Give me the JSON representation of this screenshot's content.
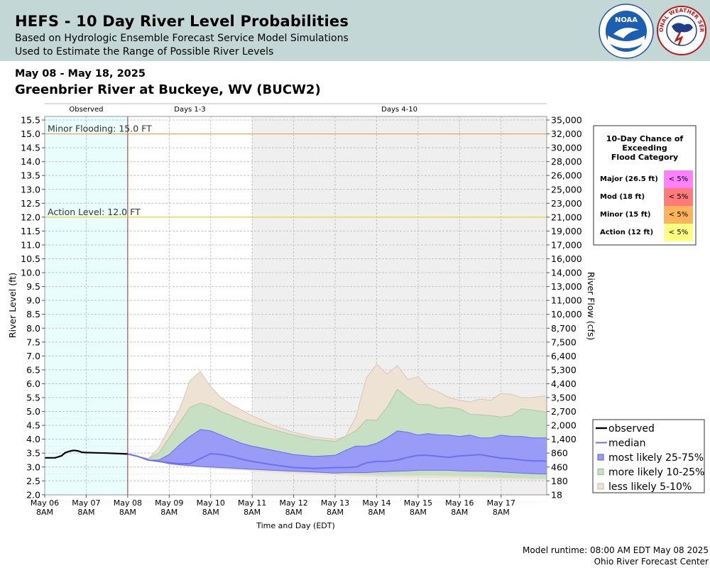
{
  "header": {
    "title": "HEFS - 10 Day River Level Probabilities",
    "subtitle_line1": "Based on Hydrologic Ensemble Forecast Service Model Simulations",
    "subtitle_line2": "Used to Estimate the Range of Possible River Levels",
    "noaa_logo": "NOAA",
    "nws_logo": "NATIONAL WEATHER SERVICE"
  },
  "date_range": "May 08 - May 18, 2025",
  "station_title": "Greenbrier River at Buckeye, WV (BUCW2)",
  "footer": {
    "runtime": "Model runtime: 08:00 AM EDT May 08 2025",
    "center": "Ohio River Forecast Center"
  },
  "colors": {
    "observed_bg": "#eafdfd",
    "days4_10_bg": "#efefef",
    "observed_line": "#000000",
    "median": "#6f6ff2",
    "band_25_75": "#9a9af7",
    "band_10_25": "#c7dfc2",
    "band_5_10": "#eee2d4",
    "minor_line": "#f0a040",
    "action_line": "#f5d22e",
    "forecast_start_line": "#c02828",
    "major": "#ff80ff",
    "mod": "#ff7b7b",
    "minor": "#ffb45a",
    "action": "#ffff80"
  },
  "chart_data": {
    "type": "area",
    "xlabel": "Time and Day (EDT)",
    "ylabel": "River Level (ft)",
    "y2label": "River Flow (cfs)",
    "ylim": [
      2.0,
      15.5
    ],
    "xlim": [
      0,
      12.1
    ],
    "x_unit": "days since May 06 8AM",
    "grid": true,
    "x_ticks": [
      {
        "x": 0,
        "line1": "May 06",
        "line2": "8AM"
      },
      {
        "x": 1,
        "line1": "May 07",
        "line2": "8AM"
      },
      {
        "x": 2,
        "line1": "May 08",
        "line2": "8AM"
      },
      {
        "x": 3,
        "line1": "May 09",
        "line2": "8AM"
      },
      {
        "x": 4,
        "line1": "May 10",
        "line2": "8AM"
      },
      {
        "x": 5,
        "line1": "May 11",
        "line2": "8AM"
      },
      {
        "x": 6,
        "line1": "May 12",
        "line2": "8AM"
      },
      {
        "x": 7,
        "line1": "May 13",
        "line2": "8AM"
      },
      {
        "x": 8,
        "line1": "May 14",
        "line2": "8AM"
      },
      {
        "x": 9,
        "line1": "May 15",
        "line2": "8AM"
      },
      {
        "x": 10,
        "line1": "May 16",
        "line2": "8AM"
      },
      {
        "x": 11,
        "line1": "May 17",
        "line2": "8AM"
      }
    ],
    "y_ticks": [
      "2.0",
      "2.5",
      "3.0",
      "3.5",
      "4.0",
      "4.5",
      "5.0",
      "5.5",
      "6.0",
      "6.5",
      "7.0",
      "7.5",
      "8.0",
      "8.5",
      "9.0",
      "9.5",
      "10.0",
      "10.5",
      "11.0",
      "11.5",
      "12.0",
      "12.5",
      "13.0",
      "13.5",
      "14.0",
      "14.5",
      "15.0",
      "15.5"
    ],
    "flow_ticks": [
      "18",
      "180",
      "460",
      "860",
      "1,400",
      "2,000",
      "2,700",
      "3,500",
      "4,400",
      "5,300",
      "6,400",
      "7,500",
      "8,700",
      "10,000",
      "11,000",
      "13,000",
      "14,000",
      "16,000",
      "17,000",
      "19,000",
      "21,000",
      "23,000",
      "25,000",
      "26,000",
      "28,000",
      "30,000",
      "32,000",
      "35,000"
    ],
    "periods": [
      {
        "label": "Observed",
        "x_start": 0,
        "x_end": 2
      },
      {
        "label": "Days 1-3",
        "x_start": 2,
        "x_end": 5
      },
      {
        "label": "Days 4-10",
        "x_start": 5,
        "x_end": 12.1
      }
    ],
    "thresholds": [
      {
        "label": "Minor Flooding: 15.0 FT",
        "value": 15.0
      },
      {
        "label": "Action Level: 12.0 FT",
        "value": 12.0
      }
    ],
    "observed": {
      "x": [
        0,
        0.25,
        0.4,
        0.5,
        0.6,
        0.7,
        0.8,
        0.9,
        1.0,
        1.5,
        2.0
      ],
      "y": [
        3.33,
        3.33,
        3.4,
        3.52,
        3.57,
        3.6,
        3.58,
        3.53,
        3.52,
        3.5,
        3.47
      ]
    },
    "forecast_x": [
      2.0,
      2.25,
      2.5,
      2.75,
      3.0,
      3.25,
      3.5,
      3.75,
      4.0,
      4.25,
      4.5,
      4.75,
      5.0,
      5.5,
      6.0,
      6.5,
      7.0,
      7.25,
      7.5,
      7.75,
      8.0,
      8.25,
      8.5,
      8.75,
      9.0,
      9.25,
      9.5,
      9.75,
      10.0,
      10.25,
      10.5,
      10.75,
      11.0,
      11.25,
      11.5,
      11.75,
      12.0,
      12.1
    ],
    "median": [
      3.47,
      3.38,
      3.25,
      3.2,
      3.15,
      3.12,
      3.12,
      3.3,
      3.48,
      3.45,
      3.38,
      3.28,
      3.2,
      3.08,
      2.98,
      2.95,
      2.98,
      2.98,
      3.0,
      3.15,
      3.2,
      3.2,
      3.25,
      3.35,
      3.42,
      3.42,
      3.38,
      3.35,
      3.4,
      3.42,
      3.45,
      3.38,
      3.32,
      3.3,
      3.25,
      3.22,
      3.22,
      3.2
    ],
    "p25": [
      3.47,
      3.38,
      3.25,
      3.2,
      3.12,
      3.08,
      3.05,
      3.02,
      3.0,
      2.98,
      2.96,
      2.94,
      2.92,
      2.88,
      2.85,
      2.82,
      2.78,
      2.8,
      2.8,
      2.8,
      2.82,
      2.84,
      2.85,
      2.86,
      2.88,
      2.88,
      2.88,
      2.88,
      2.86,
      2.85,
      2.85,
      2.84,
      2.82,
      2.8,
      2.78,
      2.76,
      2.75,
      2.75
    ],
    "p75": [
      3.47,
      3.38,
      3.25,
      3.25,
      3.45,
      3.8,
      4.1,
      4.35,
      4.3,
      4.15,
      4.0,
      3.85,
      3.75,
      3.6,
      3.45,
      3.38,
      3.42,
      3.6,
      3.75,
      3.75,
      3.85,
      4.05,
      4.3,
      4.25,
      4.15,
      4.2,
      4.15,
      4.15,
      4.1,
      4.15,
      4.05,
      4.05,
      4.15,
      4.1,
      4.1,
      4.05,
      4.05,
      4.05
    ],
    "p10": [
      3.47,
      3.38,
      3.25,
      3.2,
      3.12,
      3.08,
      3.03,
      3.0,
      2.98,
      2.96,
      2.94,
      2.92,
      2.9,
      2.86,
      2.82,
      2.78,
      2.75,
      2.74,
      2.73,
      2.72,
      2.7,
      2.7,
      2.7,
      2.7,
      2.7,
      2.7,
      2.69,
      2.68,
      2.67,
      2.66,
      2.65,
      2.63,
      2.62,
      2.6,
      2.6,
      2.58,
      2.58,
      2.58
    ],
    "p90": [
      3.47,
      3.38,
      3.3,
      3.5,
      4.05,
      4.6,
      5.15,
      5.3,
      5.2,
      5.0,
      4.85,
      4.7,
      4.55,
      4.35,
      4.15,
      4.0,
      3.92,
      4.1,
      4.3,
      4.7,
      4.68,
      5.15,
      5.8,
      5.5,
      5.25,
      5.25,
      5.12,
      5.15,
      5.1,
      4.9,
      4.88,
      4.85,
      4.8,
      4.85,
      5.1,
      5.05,
      5.0,
      4.97
    ],
    "p05": [
      3.47,
      3.38,
      3.25,
      3.2,
      3.1,
      3.05,
      3.0,
      2.98,
      2.95,
      2.92,
      2.9,
      2.88,
      2.85,
      2.8,
      2.75,
      2.72,
      2.7,
      2.68,
      2.66,
      2.65,
      2.64,
      2.63,
      2.62,
      2.62,
      2.62,
      2.61,
      2.6,
      2.6,
      2.6,
      2.58,
      2.58,
      2.56,
      2.55,
      2.54,
      2.53,
      2.52,
      2.52,
      2.52
    ],
    "p95": [
      3.47,
      3.38,
      3.3,
      3.7,
      4.4,
      5.1,
      6.1,
      6.45,
      5.9,
      5.5,
      5.25,
      5.05,
      4.85,
      4.5,
      4.25,
      4.08,
      4.0,
      4.1,
      4.8,
      6.2,
      6.7,
      6.35,
      6.65,
      6.15,
      6.25,
      5.85,
      5.7,
      5.5,
      5.4,
      5.35,
      5.45,
      5.4,
      5.65,
      5.62,
      5.5,
      5.5,
      5.55,
      5.55
    ],
    "legend": [
      {
        "label": "observed",
        "kind": "line",
        "color": "#000000"
      },
      {
        "label": "median",
        "kind": "line",
        "color": "#6f6ff2"
      },
      {
        "label": "most likely 25-75%",
        "kind": "box",
        "color": "#9a9af7",
        "edge": "#5a5ae8"
      },
      {
        "label": "more likely 10-25%",
        "kind": "box",
        "color": "#c7dfc2",
        "edge": "#8fbf86"
      },
      {
        "label": "less likely 5-10%",
        "kind": "box",
        "color": "#eee2d4",
        "edge": "#cdb79e"
      }
    ],
    "legend_position": "bottom-right",
    "flood_table": {
      "title_lines": [
        "10-Day Chance of",
        "Exceeding",
        "Flood Category"
      ],
      "rows": [
        {
          "label": "Major (26.5 ft)",
          "value": "< 5%",
          "color": "#ff80ff"
        },
        {
          "label": "Mod (18 ft)",
          "value": "< 5%",
          "color": "#ff7b7b"
        },
        {
          "label": "Minor (15 ft)",
          "value": "< 5%",
          "color": "#ffb45a"
        },
        {
          "label": "Action (12 ft)",
          "value": "< 5%",
          "color": "#ffff80"
        }
      ]
    }
  }
}
